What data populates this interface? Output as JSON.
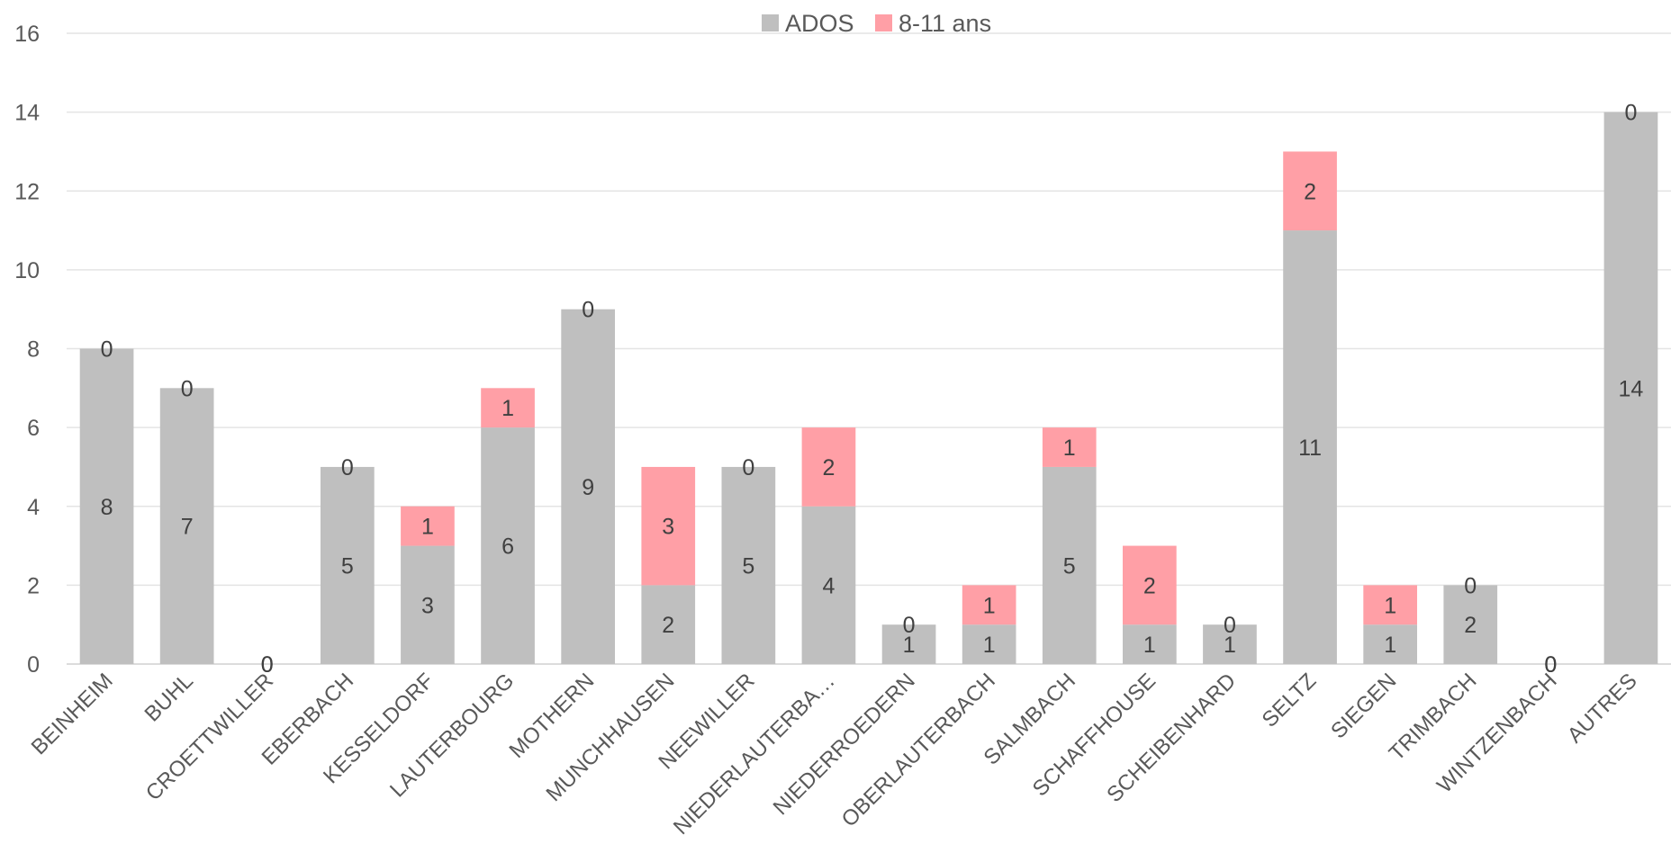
{
  "chart_data": {
    "type": "bar",
    "stacked": true,
    "title": "",
    "xlabel": "",
    "ylabel": "",
    "ylim": [
      0,
      16
    ],
    "ytick_step": 2,
    "grid": true,
    "legend_position": "top",
    "categories": [
      "BEINHEIM",
      "BUHL",
      "CROETTWILLER",
      "EBERBACH",
      "KESSELDORF",
      "LAUTERBOURG",
      "MOTHERN",
      "MUNCHHAUSEN",
      "NEEWILLER",
      "NIEDERLAUTERBA…",
      "NIEDERROEDERN",
      "OBERLAUTERBACH",
      "SALMBACH",
      "SCHAFFHOUSE",
      "SCHEIBENHARD",
      "SELTZ",
      "SIEGEN",
      "TRIMBACH",
      "WINTZENBACH",
      "AUTRES"
    ],
    "series": [
      {
        "name": "ADOS",
        "color": "#bfbfbf",
        "values": [
          8,
          7,
          0,
          5,
          3,
          6,
          9,
          2,
          5,
          4,
          1,
          1,
          5,
          1,
          1,
          11,
          1,
          2,
          0,
          14
        ]
      },
      {
        "name": "8-11 ans",
        "color": "#ff9fa6",
        "values": [
          0,
          0,
          0,
          0,
          1,
          1,
          0,
          3,
          0,
          2,
          0,
          1,
          1,
          2,
          0,
          2,
          1,
          0,
          0,
          0
        ]
      }
    ]
  }
}
